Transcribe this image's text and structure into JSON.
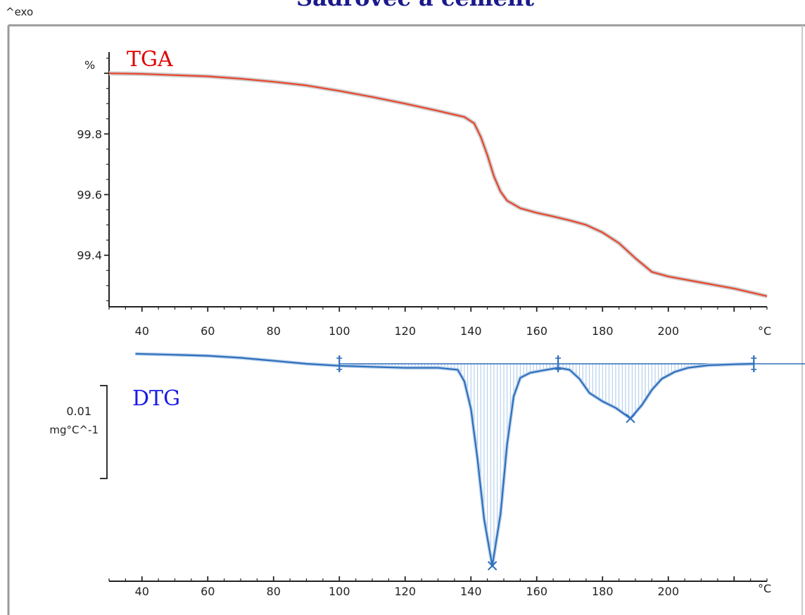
{
  "header": {
    "title": "Sádrovec a cement",
    "exo_label": "^exo"
  },
  "colors": {
    "tga": "#e8452d",
    "tga_title": "#e00000",
    "dtg": "#2f6fba",
    "dtg_title": "#1a1ae6",
    "hatch": "#a9c8ea",
    "frame": "#9a9a9a",
    "title": "#1a1a8c"
  },
  "chart_data": [
    {
      "type": "line",
      "title": "TGA",
      "ylabel": "%",
      "xlabel": "°C",
      "xlim": [
        30,
        230
      ],
      "ylim": [
        99.23,
        100.07
      ],
      "x_ticks": [
        40,
        60,
        80,
        100,
        120,
        140,
        160,
        180,
        200
      ],
      "y_ticks": [
        99.4,
        99.6,
        99.8
      ],
      "series": [
        {
          "x": [
            30,
            40,
            50,
            60,
            70,
            80,
            90,
            100,
            110,
            120,
            130,
            138,
            141,
            143,
            145,
            147,
            149,
            151,
            155,
            160,
            165,
            170,
            175,
            180,
            185,
            190,
            195,
            200,
            210,
            220,
            230
          ],
          "values": [
            100.0,
            99.998,
            99.994,
            99.99,
            99.982,
            99.972,
            99.96,
            99.942,
            99.922,
            99.9,
            99.876,
            99.856,
            99.835,
            99.79,
            99.73,
            99.66,
            99.61,
            99.58,
            99.555,
            99.54,
            99.528,
            99.515,
            99.5,
            99.475,
            99.44,
            99.39,
            99.345,
            99.33,
            99.31,
            99.29,
            99.265
          ]
        }
      ]
    },
    {
      "type": "area",
      "title": "DTG",
      "xlabel": "°C",
      "scale_bar": {
        "value": "0.01",
        "unit": "mg°C^-1"
      },
      "xlim": [
        30,
        230
      ],
      "ylim": [
        -0.0425,
        0.003
      ],
      "x_ticks": [
        40,
        60,
        80,
        100,
        120,
        140,
        160,
        180,
        200
      ],
      "baseline": 0,
      "integration_limits": [
        100,
        166.5,
        226
      ],
      "peaks": [
        {
          "x": 146.5,
          "y": -0.0403
        },
        {
          "x": 188.5,
          "y": -0.0109
        }
      ],
      "series": [
        {
          "x": [
            38,
            50,
            60,
            70,
            80,
            90,
            100,
            110,
            120,
            130,
            136,
            138,
            140,
            142,
            144,
            146.5,
            149,
            151,
            153,
            155,
            158,
            162,
            166.5,
            170,
            173,
            176,
            180,
            184,
            188.5,
            192,
            195,
            198,
            202,
            206,
            212,
            220,
            226
          ],
          "values": [
            0.002,
            0.0018,
            0.0016,
            0.0012,
            0.0006,
            0.0,
            -0.0004,
            -0.0006,
            -0.0008,
            -0.0008,
            -0.0012,
            -0.0035,
            -0.009,
            -0.019,
            -0.031,
            -0.0403,
            -0.03,
            -0.016,
            -0.0065,
            -0.0028,
            -0.0018,
            -0.0013,
            -0.0008,
            -0.0012,
            -0.003,
            -0.0058,
            -0.0075,
            -0.0088,
            -0.0109,
            -0.0082,
            -0.0052,
            -0.003,
            -0.0016,
            -0.0008,
            -0.0003,
            -0.0001,
            0.0
          ]
        }
      ]
    }
  ]
}
